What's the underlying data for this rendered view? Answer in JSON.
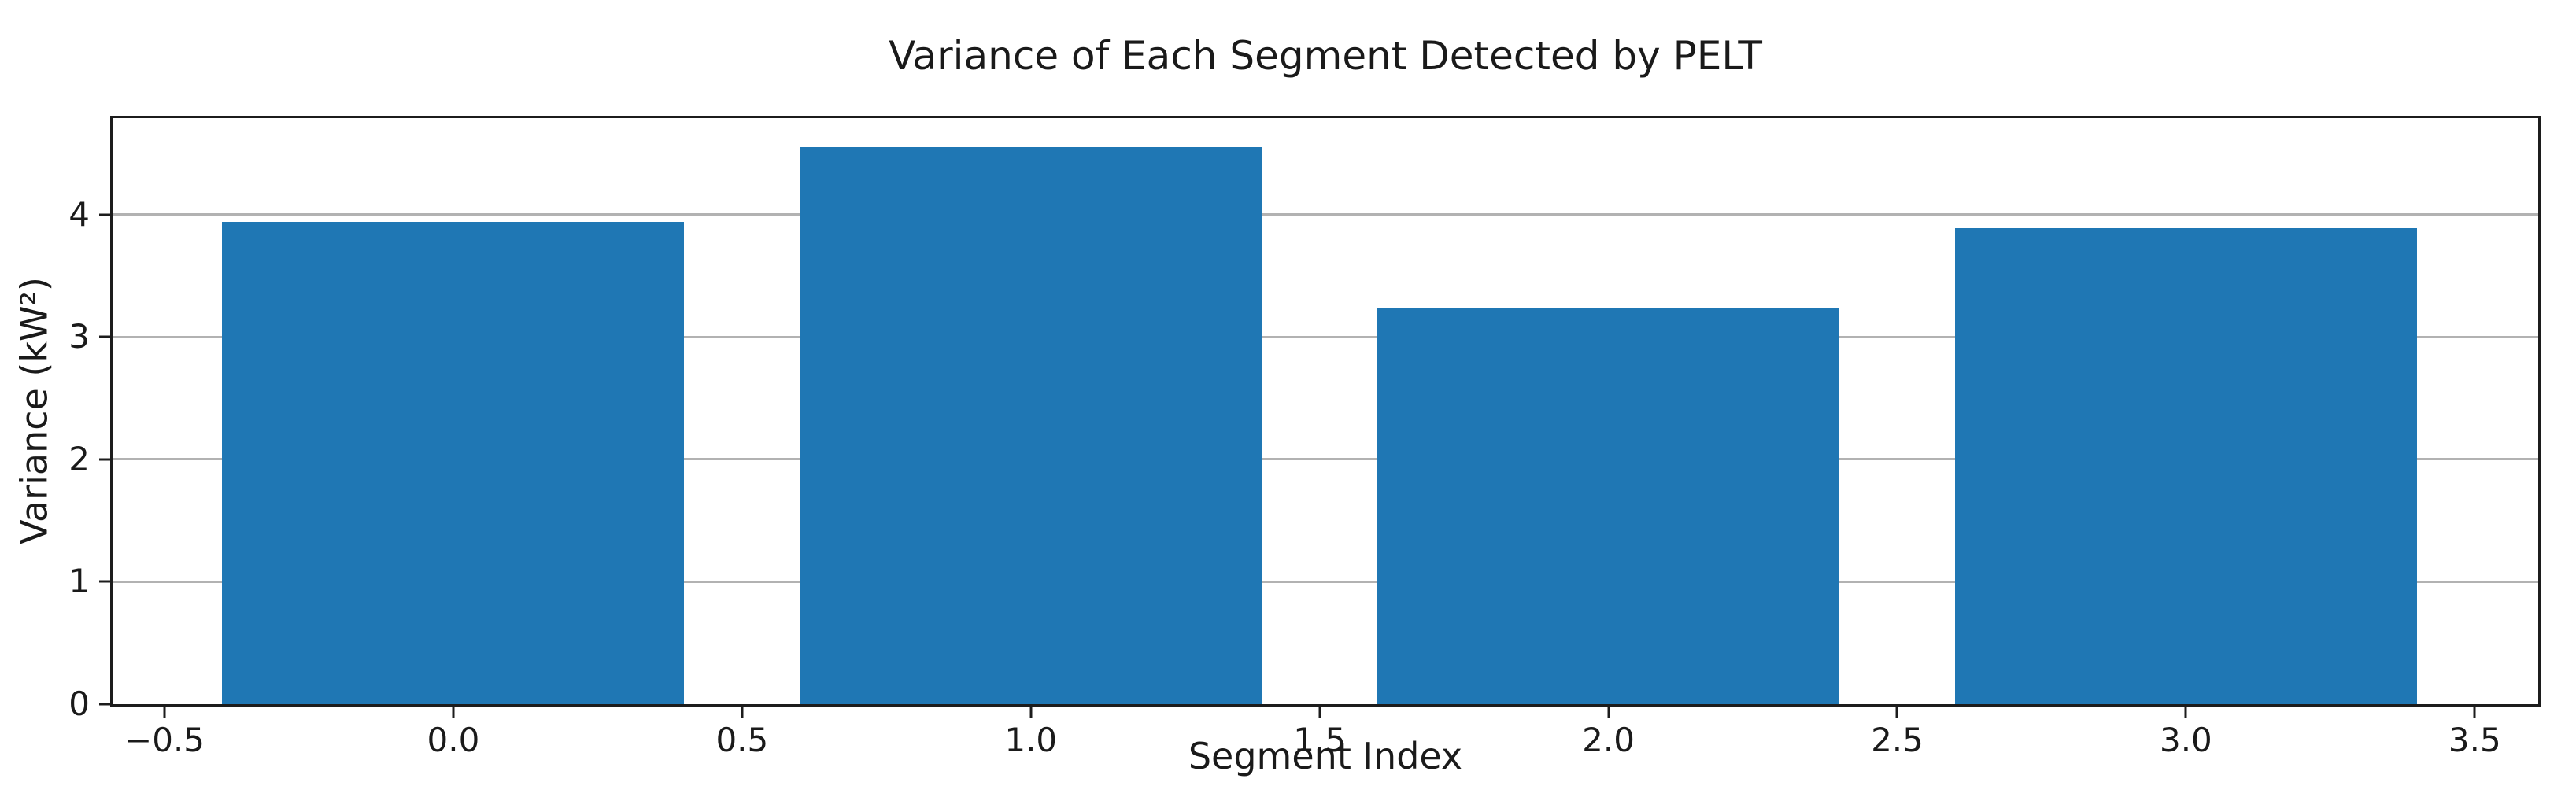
{
  "chart_data": {
    "type": "bar",
    "title": "Variance of Each Segment Detected by PELT",
    "xlabel": "Segment Index",
    "ylabel": "Variance (kW²)",
    "categories": [
      0,
      1,
      2,
      3
    ],
    "values": [
      3.94,
      4.55,
      3.24,
      3.89
    ],
    "bar_width": 0.8,
    "bar_color": "#1f77b4",
    "xlim": [
      -0.59,
      3.61
    ],
    "ylim": [
      0,
      4.79
    ],
    "xticks": [
      -0.5,
      0.0,
      0.5,
      1.0,
      1.5,
      2.0,
      2.5,
      3.0,
      3.5
    ],
    "xtick_labels": [
      "−0.5",
      "0.0",
      "0.5",
      "1.0",
      "1.5",
      "2.0",
      "2.5",
      "3.0",
      "3.5"
    ],
    "yticks": [
      0,
      1,
      2,
      3,
      4
    ],
    "ytick_labels": [
      "0",
      "1",
      "2",
      "3",
      "4"
    ],
    "grid": "horizontal",
    "grid_color": "#b2b2b2",
    "spine_color": "#1c1c1c",
    "legend": "none"
  }
}
